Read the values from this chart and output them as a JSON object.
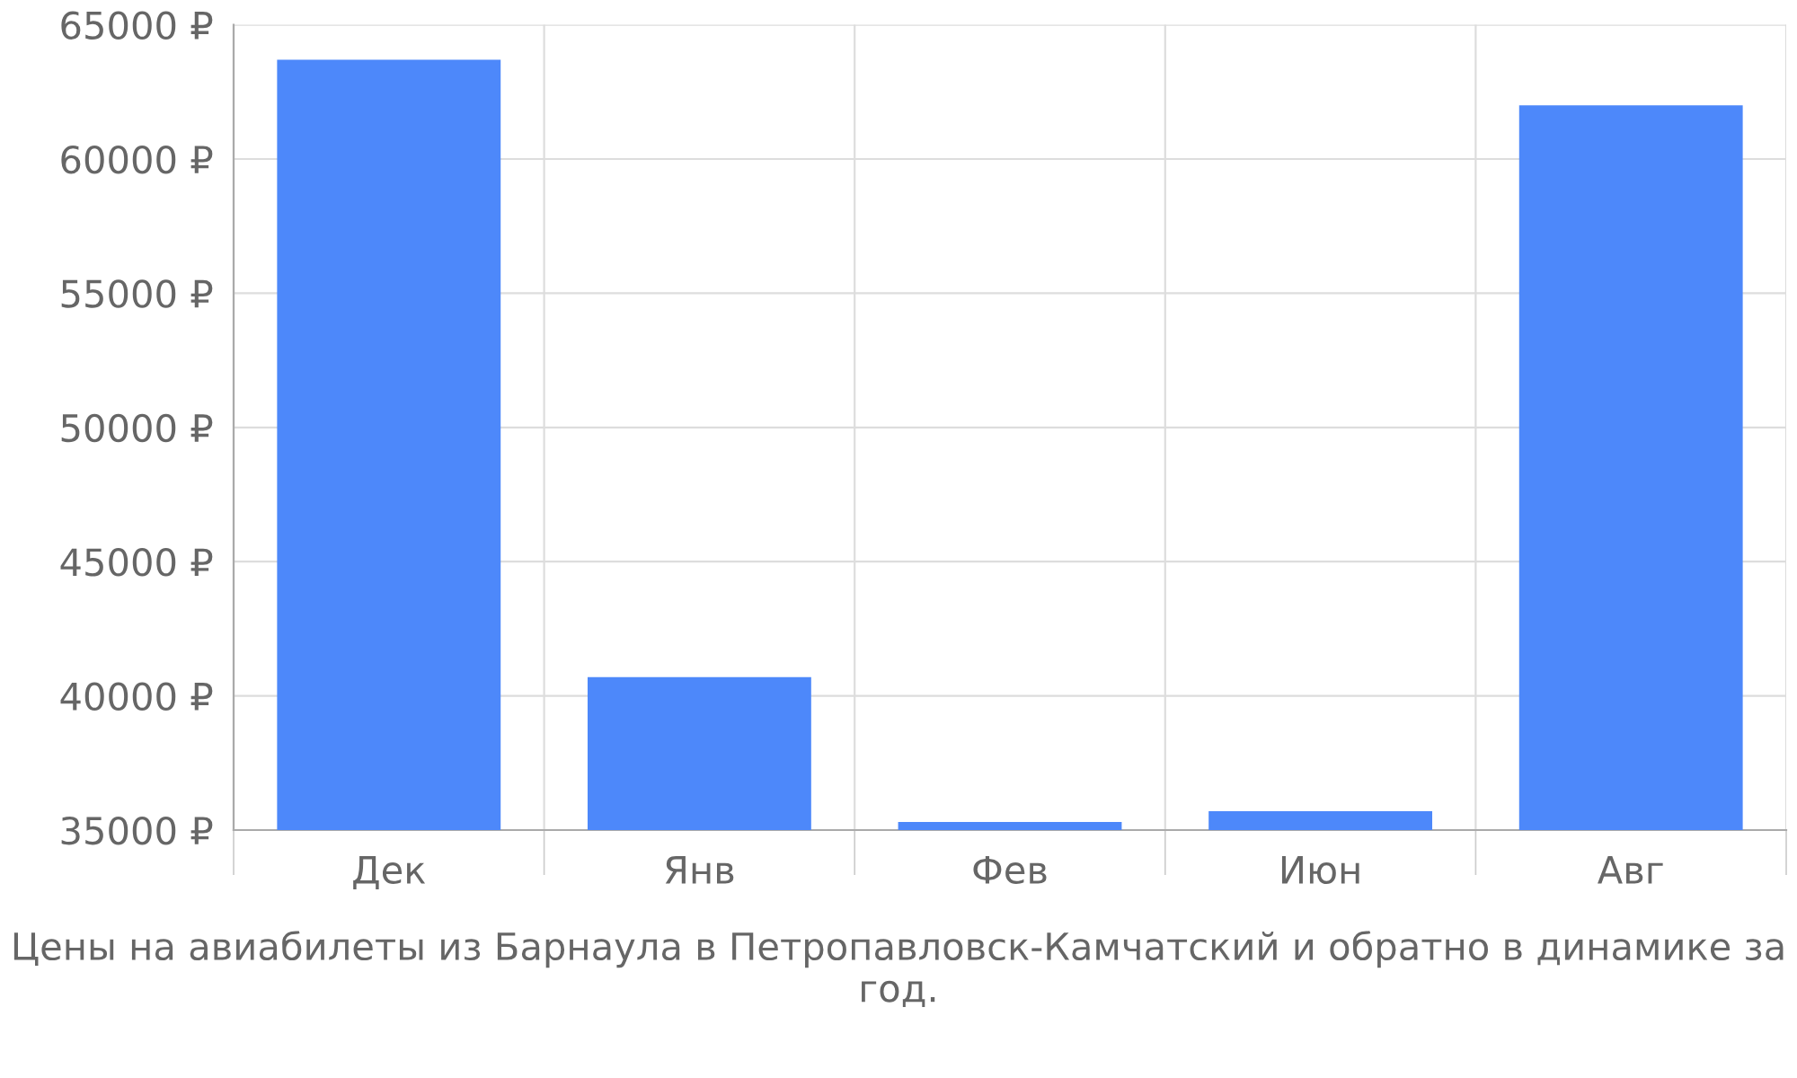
{
  "chart_data": {
    "type": "bar",
    "categories": [
      "Дек",
      "Янв",
      "Фев",
      "Июн",
      "Авг"
    ],
    "values": [
      63700,
      40700,
      35300,
      35700,
      62000
    ],
    "color": "#4d88fa",
    "ylim": [
      35000,
      65000
    ],
    "yticks": [
      {
        "value": 35000,
        "label": "35000 ₽"
      },
      {
        "value": 40000,
        "label": "40000 ₽"
      },
      {
        "value": 45000,
        "label": "45000 ₽"
      },
      {
        "value": 50000,
        "label": "50000 ₽"
      },
      {
        "value": 55000,
        "label": "55000 ₽"
      },
      {
        "value": 60000,
        "label": "60000 ₽"
      },
      {
        "value": 65000,
        "label": "65000 ₽"
      }
    ],
    "grid": true,
    "annotations": [
      "Цены на авиабилеты из Барнаула в Петропавловск-Камчатский и обратно в динамике за год."
    ]
  }
}
